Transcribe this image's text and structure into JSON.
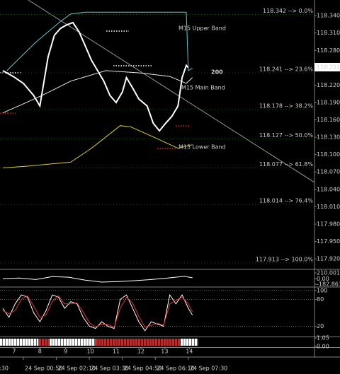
{
  "chart_data": [
    {
      "type": "line",
      "xlim": [
        -1.34,
        151.2
      ],
      "ylim": [
        117.903,
        118.367
      ],
      "yticks": [
        {
          "value": 118.34,
          "label": "118.340"
        },
        {
          "value": 118.31,
          "label": "118.310"
        },
        {
          "value": 118.28,
          "label": "118.280"
        },
        {
          "value": 118.25,
          "label": "118.250"
        },
        {
          "value": 118.22,
          "label": "118.220"
        },
        {
          "value": 118.19,
          "label": "118.190"
        },
        {
          "value": 118.16,
          "label": "118.160"
        },
        {
          "value": 118.13,
          "label": "118.130"
        },
        {
          "value": 118.1,
          "label": "118.100"
        },
        {
          "value": 118.07,
          "label": "118.070"
        },
        {
          "value": 118.04,
          "label": "118.040"
        },
        {
          "value": 118.01,
          "label": "118.010"
        },
        {
          "value": 117.98,
          "label": "117.980"
        },
        {
          "value": 117.95,
          "label": "117.950"
        },
        {
          "value": 117.92,
          "label": "117.920"
        }
      ],
      "xticks": [
        {
          "value": -6,
          "label": ":30"
        },
        {
          "value": 10,
          "label": "24 Sep 00:50"
        },
        {
          "value": 26,
          "label": "24 Sep 02:10"
        },
        {
          "value": 42,
          "label": "24 Sep 03:30"
        },
        {
          "value": 58,
          "label": "24 Sep 04:50"
        },
        {
          "value": 74,
          "label": "24 Sep 06:10"
        },
        {
          "value": 90,
          "label": "24 Sep 07:30"
        }
      ],
      "series": [
        {
          "color": "#ffffff",
          "x": [
            0,
            5,
            10,
            15,
            18,
            22,
            25,
            28,
            31,
            34,
            37,
            40,
            43,
            46,
            49,
            52,
            55,
            58,
            60,
            63,
            66,
            70,
            73,
            76,
            79,
            82,
            85,
            87,
            89,
            90
          ],
          "values": [
            118.245,
            118.235,
            118.223,
            118.202,
            118.184,
            118.269,
            118.306,
            118.318,
            118.324,
            118.328,
            118.312,
            118.288,
            118.263,
            118.245,
            118.227,
            118.202,
            118.19,
            118.208,
            118.233,
            118.215,
            118.196,
            118.184,
            118.154,
            118.141,
            118.154,
            118.166,
            118.184,
            118.233,
            118.254,
            118.25
          ]
        },
        {
          "name": "M15 Upper Band",
          "color": "#5fc8d0",
          "x": [
            2,
            16,
            28,
            33,
            40,
            60,
            80,
            89,
            90,
            92
          ],
          "values": [
            118.245,
            118.294,
            118.33,
            118.343,
            118.346,
            118.346,
            118.346,
            118.346,
            118.245,
            118.249
          ]
        },
        {
          "name": "M15 Main Band",
          "color": "#e8e8e8",
          "x": [
            0,
            9,
            19,
            33,
            50,
            67,
            81,
            89,
            92
          ],
          "values": [
            118.172,
            118.186,
            118.202,
            118.227,
            118.245,
            118.241,
            118.235,
            118.223,
            118.233
          ]
        },
        {
          "name": "M15 Lower Band",
          "color": "#d8c83a",
          "x": [
            0,
            12,
            33,
            43,
            57,
            62,
            74,
            85,
            92
          ],
          "values": [
            118.077,
            118.08,
            118.087,
            118.111,
            118.15,
            118.148,
            118.129,
            118.111,
            118.117
          ]
        }
      ],
      "last_price": 118.251,
      "fibonacci": [
        {
          "value": 118.342,
          "label": "118.342 --> 0.0%"
        },
        {
          "value": 118.241,
          "label": "118.241 --> 23.6%"
        },
        {
          "value": 118.178,
          "label": "118.178 --> 38.2%"
        },
        {
          "value": 118.127,
          "label": "118.127 --> 50.0%"
        },
        {
          "value": 118.077,
          "label": "118.077 --> 61.8%"
        },
        {
          "value": 118.014,
          "label": "118.014 --> 76.4%"
        },
        {
          "value": 117.913,
          "label": "117.913 --> 100.0%"
        }
      ],
      "annotations": [
        {
          "text": "200",
          "color": "#2a2ad0"
        }
      ]
    },
    {
      "type": "line",
      "xlim": [
        -1.34,
        151.2
      ],
      "ylim": [
        -257,
        308
      ],
      "yticks": [
        210.0015,
        {
          "value": 0,
          "label": "0.00"
        },
        -182.8634
      ],
      "series": [
        {
          "color": "#ffffff",
          "x": [
            0,
            8,
            16,
            24,
            32,
            40,
            48,
            56,
            64,
            72,
            80,
            88,
            92
          ],
          "values": [
            10,
            30,
            -20,
            80,
            60,
            -40,
            -110,
            -90,
            -60,
            -20,
            30,
            90,
            40
          ]
        }
      ]
    },
    {
      "type": "line",
      "xlim": [
        -1.34,
        151.2
      ],
      "ylim": [
        -3,
        106
      ],
      "grid": true,
      "yticks": [
        100,
        80,
        20
      ],
      "series": [
        {
          "color": "#ffffff",
          "x": [
            0,
            3,
            6,
            9,
            12,
            15,
            18,
            21,
            24,
            27,
            30,
            33,
            36,
            39,
            42,
            45,
            48,
            51,
            54,
            57,
            60,
            63,
            66,
            69,
            72,
            75,
            78,
            81,
            84,
            87,
            90,
            92
          ],
          "values": [
            60,
            40,
            70,
            90,
            85,
            50,
            30,
            55,
            90,
            85,
            60,
            75,
            70,
            40,
            20,
            15,
            30,
            20,
            15,
            80,
            90,
            60,
            30,
            10,
            30,
            25,
            20,
            90,
            70,
            90,
            60,
            45
          ]
        },
        {
          "color": "#e03030",
          "x": [
            0,
            3,
            6,
            9,
            12,
            15,
            18,
            21,
            24,
            27,
            30,
            33,
            36,
            39,
            42,
            45,
            48,
            51,
            54,
            57,
            60,
            63,
            66,
            69,
            72,
            75,
            78,
            81,
            84,
            87,
            90,
            92
          ],
          "values": [
            55,
            48,
            55,
            80,
            88,
            65,
            40,
            45,
            75,
            88,
            70,
            70,
            72,
            52,
            28,
            18,
            25,
            24,
            18,
            60,
            85,
            72,
            42,
            18,
            22,
            27,
            22,
            70,
            78,
            85,
            70,
            52
          ]
        }
      ]
    },
    {
      "type": "strip",
      "xlim": [
        -1.34,
        151.2
      ],
      "ylim": [
        -0.1,
        1.15
      ],
      "yticks": [
        {
          "value": 1.05,
          "label": "1.05"
        },
        {
          "value": 0,
          "label": "0.00"
        }
      ],
      "xticks": [
        {
          "value": 5.5,
          "label": "7"
        },
        {
          "value": 18,
          "label": "8"
        },
        {
          "value": 30.5,
          "label": "9"
        },
        {
          "value": 42.5,
          "label": "10"
        },
        {
          "value": 55,
          "label": "11"
        },
        {
          "value": 67,
          "label": "12"
        },
        {
          "value": 78.5,
          "label": "13"
        },
        {
          "value": 90.5,
          "label": "14"
        }
      ]
    }
  ]
}
